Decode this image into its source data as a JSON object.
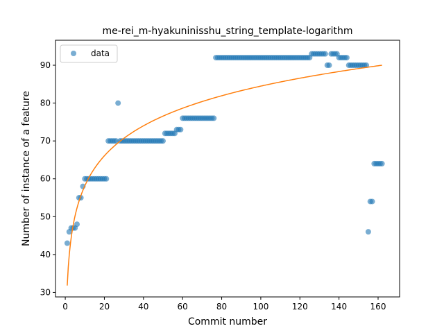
{
  "chart_data": {
    "type": "scatter",
    "title": "me-rei_m-hyakuninisshu_string_template-logarithm",
    "xlabel": "Commit number",
    "ylabel": "Number of instance of a feature",
    "xlim": [
      -5,
      171
    ],
    "ylim": [
      28.8,
      96.6
    ],
    "xticks": [
      0,
      20,
      40,
      60,
      80,
      100,
      120,
      140,
      160
    ],
    "yticks": [
      30,
      40,
      50,
      60,
      70,
      80,
      90
    ],
    "legend": {
      "position": "top-left",
      "entries": [
        "data"
      ]
    },
    "colors": {
      "data": "#1f77b4",
      "fit": "#ff7f0e"
    },
    "grid": false,
    "series": [
      {
        "name": "data",
        "kind": "scatter",
        "points": [
          [
            1,
            43
          ],
          [
            2,
            46
          ],
          [
            3,
            47
          ],
          [
            4,
            47
          ],
          [
            5,
            47
          ],
          [
            6,
            48
          ],
          [
            7,
            55
          ],
          [
            8,
            55
          ],
          [
            9,
            58
          ],
          [
            10,
            60
          ],
          [
            11,
            60
          ],
          [
            12,
            60
          ],
          [
            13,
            60
          ],
          [
            14,
            60
          ],
          [
            15,
            60
          ],
          [
            16,
            60
          ],
          [
            17,
            60
          ],
          [
            18,
            60
          ],
          [
            19,
            60
          ],
          [
            20,
            60
          ],
          [
            21,
            60
          ],
          [
            22,
            70
          ],
          [
            23,
            70
          ],
          [
            24,
            70
          ],
          [
            25,
            70
          ],
          [
            26,
            70
          ],
          [
            27,
            80
          ],
          [
            28,
            70
          ],
          [
            29,
            70
          ],
          [
            30,
            70
          ],
          [
            31,
            70
          ],
          [
            32,
            70
          ],
          [
            33,
            70
          ],
          [
            34,
            70
          ],
          [
            35,
            70
          ],
          [
            36,
            70
          ],
          [
            37,
            70
          ],
          [
            38,
            70
          ],
          [
            39,
            70
          ],
          [
            40,
            70
          ],
          [
            41,
            70
          ],
          [
            42,
            70
          ],
          [
            43,
            70
          ],
          [
            44,
            70
          ],
          [
            45,
            70
          ],
          [
            46,
            70
          ],
          [
            47,
            70
          ],
          [
            48,
            70
          ],
          [
            49,
            70
          ],
          [
            50,
            70
          ],
          [
            51,
            72
          ],
          [
            52,
            72
          ],
          [
            53,
            72
          ],
          [
            54,
            72
          ],
          [
            55,
            72
          ],
          [
            56,
            72
          ],
          [
            57,
            73
          ],
          [
            58,
            73
          ],
          [
            59,
            73
          ],
          [
            60,
            76
          ],
          [
            61,
            76
          ],
          [
            62,
            76
          ],
          [
            63,
            76
          ],
          [
            64,
            76
          ],
          [
            65,
            76
          ],
          [
            66,
            76
          ],
          [
            67,
            76
          ],
          [
            68,
            76
          ],
          [
            69,
            76
          ],
          [
            70,
            76
          ],
          [
            71,
            76
          ],
          [
            72,
            76
          ],
          [
            73,
            76
          ],
          [
            74,
            76
          ],
          [
            75,
            76
          ],
          [
            76,
            76
          ],
          [
            77,
            92
          ],
          [
            78,
            92
          ],
          [
            79,
            92
          ],
          [
            80,
            92
          ],
          [
            81,
            92
          ],
          [
            82,
            92
          ],
          [
            83,
            92
          ],
          [
            84,
            92
          ],
          [
            85,
            92
          ],
          [
            86,
            92
          ],
          [
            87,
            92
          ],
          [
            88,
            92
          ],
          [
            89,
            92
          ],
          [
            90,
            92
          ],
          [
            91,
            92
          ],
          [
            92,
            92
          ],
          [
            93,
            92
          ],
          [
            94,
            92
          ],
          [
            95,
            92
          ],
          [
            96,
            92
          ],
          [
            97,
            92
          ],
          [
            98,
            92
          ],
          [
            99,
            92
          ],
          [
            100,
            92
          ],
          [
            101,
            92
          ],
          [
            102,
            92
          ],
          [
            103,
            92
          ],
          [
            104,
            92
          ],
          [
            105,
            92
          ],
          [
            106,
            92
          ],
          [
            107,
            92
          ],
          [
            108,
            92
          ],
          [
            109,
            92
          ],
          [
            110,
            92
          ],
          [
            111,
            92
          ],
          [
            112,
            92
          ],
          [
            113,
            92
          ],
          [
            114,
            92
          ],
          [
            115,
            92
          ],
          [
            116,
            92
          ],
          [
            117,
            92
          ],
          [
            118,
            92
          ],
          [
            119,
            92
          ],
          [
            120,
            92
          ],
          [
            121,
            92
          ],
          [
            122,
            92
          ],
          [
            123,
            92
          ],
          [
            124,
            92
          ],
          [
            125,
            92
          ],
          [
            126,
            93
          ],
          [
            127,
            93
          ],
          [
            128,
            93
          ],
          [
            129,
            93
          ],
          [
            130,
            93
          ],
          [
            131,
            93
          ],
          [
            132,
            93
          ],
          [
            133,
            93
          ],
          [
            134,
            90
          ],
          [
            135,
            90
          ],
          [
            136,
            93
          ],
          [
            137,
            93
          ],
          [
            138,
            93
          ],
          [
            139,
            93
          ],
          [
            140,
            92
          ],
          [
            141,
            92
          ],
          [
            142,
            92
          ],
          [
            143,
            92
          ],
          [
            144,
            92
          ],
          [
            145,
            90
          ],
          [
            146,
            90
          ],
          [
            147,
            90
          ],
          [
            148,
            90
          ],
          [
            149,
            90
          ],
          [
            150,
            90
          ],
          [
            151,
            90
          ],
          [
            152,
            90
          ],
          [
            153,
            90
          ],
          [
            154,
            90
          ],
          [
            155,
            46
          ],
          [
            156,
            54
          ],
          [
            157,
            54
          ],
          [
            158,
            64
          ],
          [
            159,
            64
          ],
          [
            160,
            64
          ],
          [
            161,
            64
          ],
          [
            162,
            64
          ]
        ]
      },
      {
        "kind": "line",
        "fit": "logarithmic",
        "a": 11.44,
        "b": 31.8,
        "x_range": [
          1,
          162
        ]
      }
    ]
  }
}
